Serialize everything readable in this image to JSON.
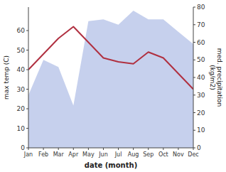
{
  "chart_data": {
    "type": "line",
    "x_label": "date (month)",
    "y_label": "max temp (C)",
    "y2_label": "med. precipitation\n(kg/m2)",
    "categories": [
      "Jan",
      "Feb",
      "Mar",
      "Apr",
      "May",
      "Jun",
      "Jul",
      "Aug",
      "Sep",
      "Oct",
      "Nov",
      "Dec"
    ],
    "series": [
      {
        "type": "line",
        "color": "#b03040",
        "values": [
          40,
          48,
          56,
          62,
          54,
          46,
          44,
          43,
          49,
          46,
          38,
          30
        ]
      },
      {
        "type": "area",
        "color": "#b8c4e8",
        "axis": "y2",
        "values": [
          30,
          50,
          46,
          24,
          72,
          73,
          70,
          78,
          73,
          73,
          66,
          59
        ]
      }
    ],
    "ylim": [
      0,
      72
    ],
    "yticks": [
      0,
      10,
      20,
      30,
      40,
      50,
      60
    ],
    "y2lim": [
      0,
      80
    ],
    "y2ticks": [
      0,
      10,
      20,
      30,
      40,
      50,
      60,
      70,
      80
    ]
  }
}
